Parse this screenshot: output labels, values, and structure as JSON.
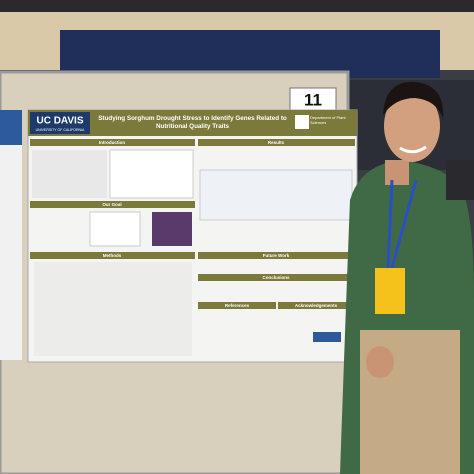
{
  "booth_number": "11",
  "poster": {
    "institution": "UC DAVIS",
    "university": "UNIVERSITY OF CALIFORNIA",
    "title": "Studying Sorghum Drought Stress to Identify Genes Related to Nutritional Quality Traits",
    "department": "Department of Plant Sciences",
    "sections": [
      "Introduction",
      "Results",
      "Our Goal",
      "Methods",
      "Future Work",
      "Conclusions",
      "References",
      "Acknowledgements"
    ]
  }
}
